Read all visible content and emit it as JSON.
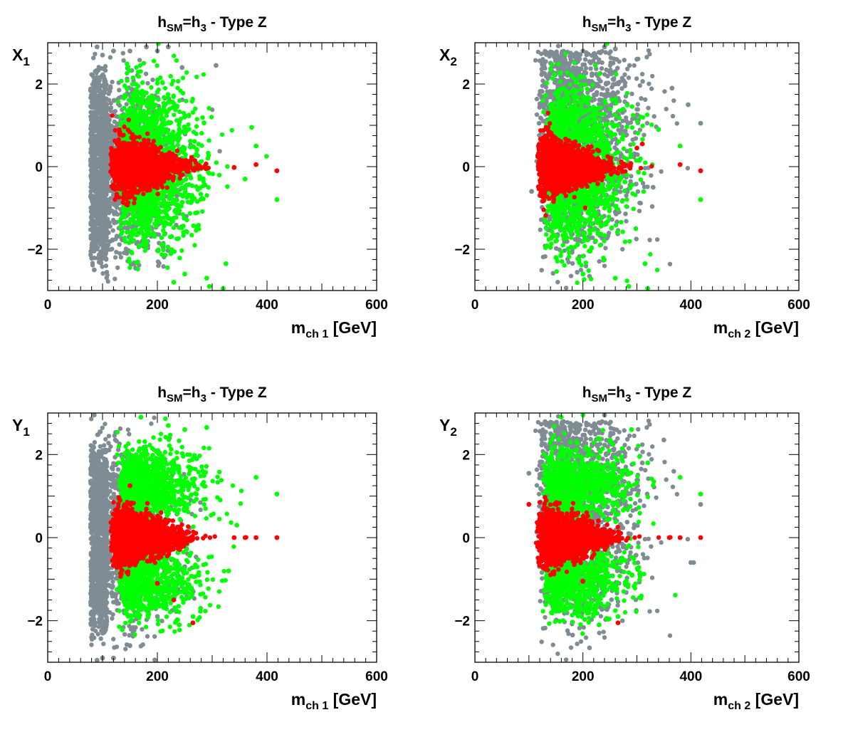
{
  "colors": {
    "gray": "#7f8c94",
    "green": "#00ff00",
    "red": "#ff0000",
    "axis": "#000000"
  },
  "chart_data": [
    {
      "type": "scatter",
      "title": "h_SM=h_3 - Type Z",
      "title_main": "h",
      "title_sub1": "SM",
      "title_mid": "=h",
      "title_sub2": "3",
      "title_tail": " - Type Z",
      "xlabel": "m_ch 1 [GeV]",
      "xlabel_main": "m",
      "xlabel_sub": "ch 1",
      "xlabel_tail": " [GeV]",
      "ylabel": "X_1",
      "ylabel_main": "X",
      "ylabel_sub": "1",
      "xlim": [
        0,
        600
      ],
      "ylim": [
        -3,
        3
      ],
      "xticks": [
        "0",
        "200",
        "400",
        "600"
      ],
      "yticks": [
        "−2",
        "0",
        "2"
      ],
      "series": [
        {
          "color": "gray",
          "spread": "wide_low_mass",
          "points": [
            [
              85,
              -2.5
            ],
            [
              90,
              2.9
            ],
            [
              100,
              2.7
            ],
            [
              120,
              2.8
            ],
            [
              150,
              2.8
            ],
            [
              180,
              2.9
            ],
            [
              200,
              2.8
            ],
            [
              220,
              2.9
            ],
            [
              245,
              2.4
            ],
            [
              307,
              2.45
            ],
            [
              100,
              -1.8
            ],
            [
              110,
              -1.9
            ]
          ]
        },
        {
          "color": "green",
          "spread": "medium",
          "points": [
            [
              380,
              0.5
            ],
            [
              418,
              -0.8
            ],
            [
              372,
              0.95
            ],
            [
              325,
              -2.35
            ],
            [
              295,
              -2.9
            ],
            [
              320,
              -2.95
            ],
            [
              290,
              -2.7
            ],
            [
              250,
              -2.6
            ],
            [
              230,
              -2.8
            ],
            [
              360,
              -0.3
            ]
          ]
        },
        {
          "color": "red",
          "spread": "narrow",
          "points": [
            [
              380,
              0.05
            ],
            [
              418,
              -0.1
            ],
            [
              340,
              -0.02
            ]
          ]
        }
      ]
    },
    {
      "type": "scatter",
      "title": "h_SM=h_3 - Type Z",
      "title_main": "h",
      "title_sub1": "SM",
      "title_mid": "=h",
      "title_sub2": "3",
      "title_tail": " - Type Z",
      "xlabel": "m_ch 2 [GeV]",
      "xlabel_main": "m",
      "xlabel_sub": "ch 2",
      "xlabel_tail": " [GeV]",
      "ylabel": "X_2",
      "ylabel_main": "X",
      "ylabel_sub": "2",
      "xlim": [
        0,
        600
      ],
      "ylim": [
        -3,
        3
      ],
      "xticks": [
        "0",
        "200",
        "400",
        "600"
      ],
      "yticks": [
        "−2",
        "0",
        "2"
      ],
      "series": [
        {
          "color": "gray",
          "spread": "wide_high_mass",
          "points": [
            [
              418,
              1.05
            ],
            [
              395,
              1.5
            ],
            [
              365,
              1.9
            ],
            [
              300,
              2.6
            ],
            [
              240,
              2.9
            ],
            [
              260,
              2.85
            ],
            [
              200,
              2.8
            ],
            [
              105,
              -0.6
            ],
            [
              260,
              -1.1
            ],
            [
              330,
              -0.5
            ]
          ]
        },
        {
          "color": "green",
          "spread": "medium",
          "points": [
            [
              380,
              0.5
            ],
            [
              418,
              -0.8
            ],
            [
              315,
              -2.35
            ],
            [
              285,
              -2.9
            ],
            [
              320,
              -2.95
            ],
            [
              260,
              -2.7
            ],
            [
              200,
              -2.6
            ],
            [
              150,
              -2.2
            ],
            [
              340,
              0.9
            ]
          ]
        },
        {
          "color": "red",
          "spread": "narrow",
          "points": [
            [
              380,
              0.05
            ],
            [
              418,
              -0.1
            ],
            [
              300,
              0.45
            ],
            [
              310,
              0.55
            ]
          ]
        }
      ]
    },
    {
      "type": "scatter",
      "title": "h_SM=h_3 - Type Z",
      "title_main": "h",
      "title_sub1": "SM",
      "title_mid": "=h",
      "title_sub2": "3",
      "title_tail": " - Type Z",
      "xlabel": "m_ch 1 [GeV]",
      "xlabel_main": "m",
      "xlabel_sub": "ch 1",
      "xlabel_tail": " [GeV]",
      "ylabel": "Y_1",
      "ylabel_main": "Y",
      "ylabel_sub": "1",
      "xlim": [
        0,
        600
      ],
      "ylim": [
        -3,
        3
      ],
      "xticks": [
        "0",
        "200",
        "400",
        "600"
      ],
      "yticks": [
        "−2",
        "0",
        "2"
      ],
      "series": [
        {
          "color": "gray",
          "spread": "wide_low_mass",
          "points": [
            [
              85,
              2.95
            ],
            [
              90,
              -2.95
            ],
            [
              100,
              -2.9
            ],
            [
              120,
              -2.9
            ],
            [
              150,
              -2.6
            ],
            [
              200,
              -1.9
            ],
            [
              230,
              -1.3
            ],
            [
              250,
              -0.7
            ]
          ]
        },
        {
          "color": "green",
          "spread": "two_bands",
          "points": [
            [
              380,
              1.45
            ],
            [
              418,
              1.05
            ],
            [
              290,
              2.65
            ],
            [
              250,
              2.6
            ],
            [
              220,
              2.7
            ],
            [
              170,
              2.9
            ],
            [
              240,
              -2.1
            ],
            [
              265,
              -1.9
            ],
            [
              330,
              -0.8
            ],
            [
              345,
              0.3
            ]
          ]
        },
        {
          "color": "red",
          "spread": "narrow",
          "points": [
            [
              380,
              0
            ],
            [
              418,
              0
            ],
            [
              360,
              0
            ],
            [
              340,
              0
            ],
            [
              265,
              -2.05
            ],
            [
              230,
              -1.5
            ],
            [
              150,
              1.25
            ],
            [
              200,
              -1.1
            ]
          ]
        }
      ]
    },
    {
      "type": "scatter",
      "title": "h_SM=h_3 - Type Z",
      "title_main": "h",
      "title_sub1": "SM",
      "title_mid": "=h",
      "title_sub2": "3",
      "title_tail": " - Type Z",
      "xlabel": "m_ch 2 [GeV]",
      "xlabel_main": "m",
      "xlabel_sub": "ch 2",
      "xlabel_tail": " [GeV]",
      "ylabel": "Y_2",
      "ylabel_main": "Y",
      "ylabel_sub": "2",
      "xlim": [
        0,
        600
      ],
      "ylim": [
        -3,
        3
      ],
      "xticks": [
        "0",
        "200",
        "400",
        "600"
      ],
      "yticks": [
        "−2",
        "0",
        "2"
      ],
      "series": [
        {
          "color": "gray",
          "spread": "wide_high_mass",
          "points": [
            [
              418,
              0.8
            ],
            [
              405,
              -0.6
            ],
            [
              400,
              -0.6
            ],
            [
              350,
              2.35
            ],
            [
              310,
              1.8
            ],
            [
              240,
              2.95
            ],
            [
              130,
              -1.55
            ],
            [
              270,
              -0.8
            ],
            [
              100,
              1.55
            ]
          ]
        },
        {
          "color": "green",
          "spread": "two_bands",
          "points": [
            [
              418,
              1.05
            ],
            [
              380,
              1.45
            ],
            [
              265,
              -1.9
            ],
            [
              230,
              -2.1
            ],
            [
              320,
              1.8
            ],
            [
              290,
              2.6
            ],
            [
              200,
              2.95
            ],
            [
              160,
              2.9
            ]
          ]
        },
        {
          "color": "red",
          "spread": "narrow",
          "points": [
            [
              418,
              0
            ],
            [
              380,
              0
            ],
            [
              360,
              0
            ],
            [
              265,
              -2.05
            ],
            [
              200,
              -1.05
            ],
            [
              100,
              0.8
            ]
          ]
        }
      ]
    }
  ]
}
